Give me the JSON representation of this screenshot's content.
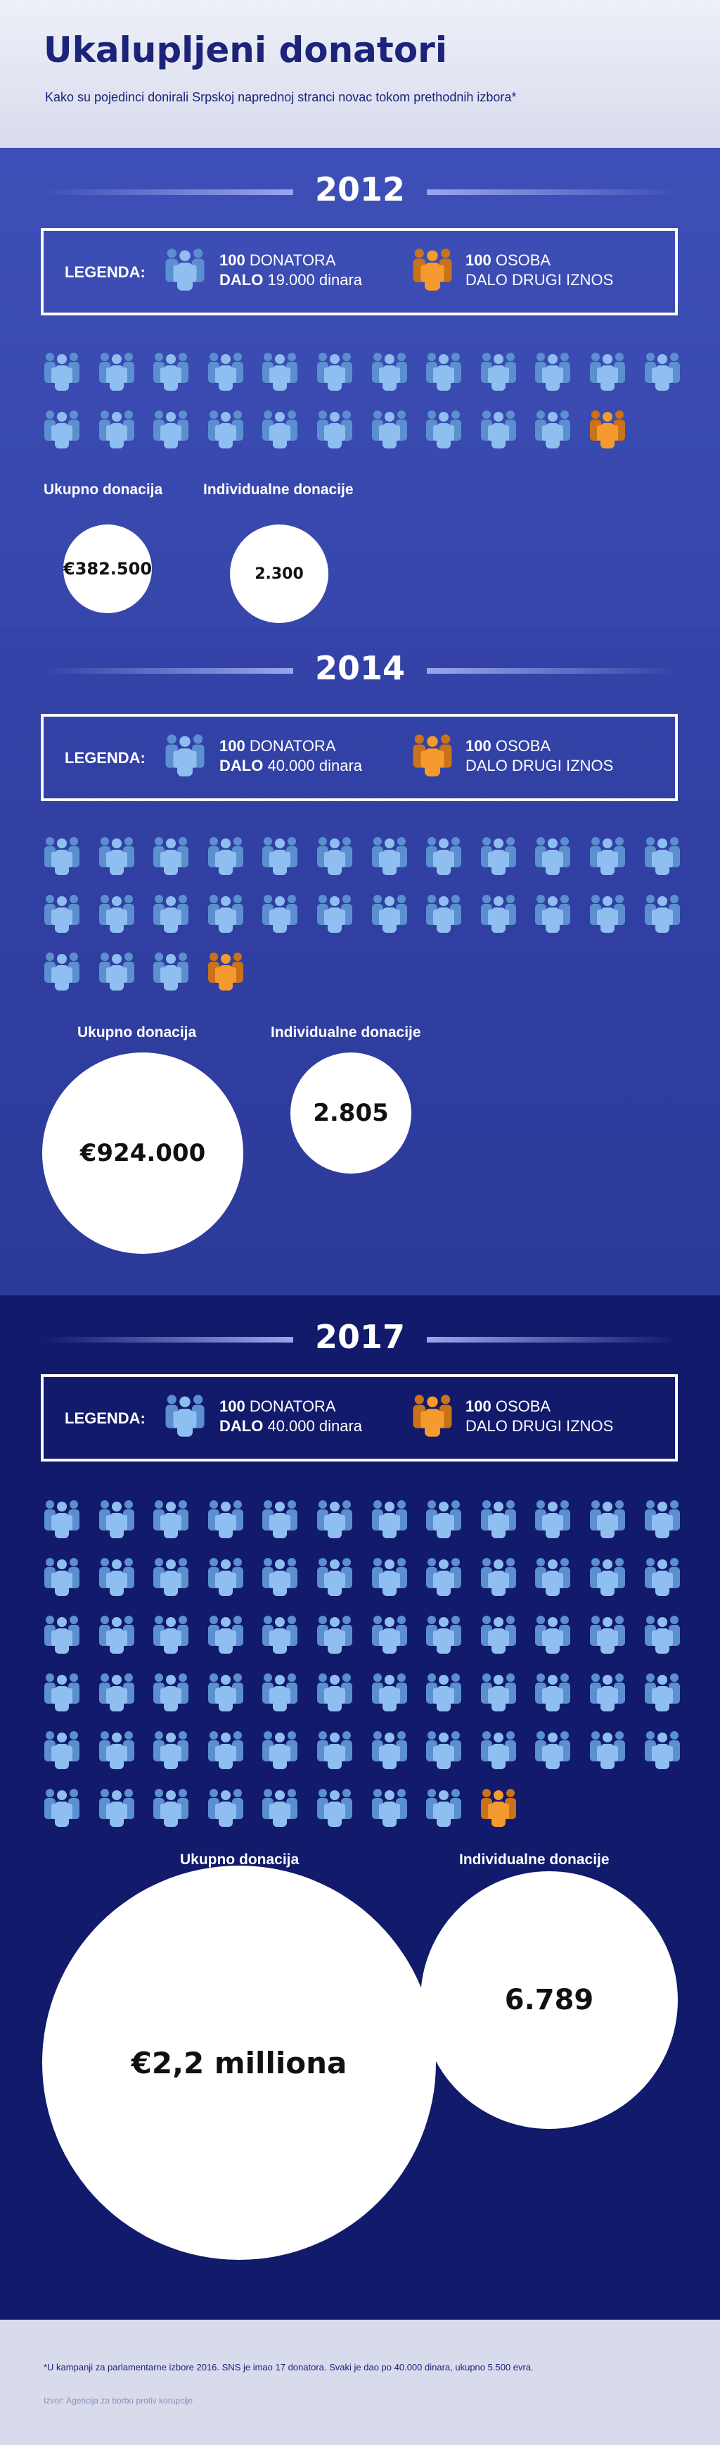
{
  "header": {
    "title": "Ukalupljeni donatori",
    "subtitle": "Kako su pojedinci donirali Srpskoj naprednoj stranci novac tokom prethodnih izbora*"
  },
  "colors": {
    "donor_icon": "#8fbff0",
    "other_icon": "#f59a2e"
  },
  "icons": {
    "donor": "people-group-icon",
    "other": "people-group-orange-icon"
  },
  "sections": [
    {
      "year": "2012",
      "legend": {
        "label": "LEGENDA:",
        "a_count": "100",
        "a_word": "DONATORA",
        "a_line2_bold": "DALO",
        "a_line2_rest": "19.000 dinara",
        "b_count": "100",
        "b_word": "OSOBA",
        "b_line2": "DALO DRUGI IZNOS"
      },
      "donor_groups": 22,
      "other_groups": 1,
      "total_label": "Ukupno donacija",
      "total_value": "€382.500",
      "individual_label": "Individualne donacije",
      "individual_value": "2.300"
    },
    {
      "year": "2014",
      "legend": {
        "label": "LEGENDA:",
        "a_count": "100",
        "a_word": "DONATORA",
        "a_line2_bold": "DALO",
        "a_line2_rest": "40.000 dinara",
        "b_count": "100",
        "b_word": "OSOBA",
        "b_line2": "DALO DRUGI IZNOS"
      },
      "donor_groups": 27,
      "other_groups": 1,
      "total_label": "Ukupno donacija",
      "total_value": "€924.000",
      "individual_label": "Individualne donacije",
      "individual_value": "2.805"
    },
    {
      "year": "2017",
      "legend": {
        "label": "LEGENDA:",
        "a_count": "100",
        "a_word": "DONATORA",
        "a_line2_bold": "DALO",
        "a_line2_rest": "40.000 dinara",
        "b_count": "100",
        "b_word": "OSOBA",
        "b_line2": "DALO DRUGI IZNOS"
      },
      "donor_groups": 68,
      "other_groups": 1,
      "total_label": "Ukupno donacija",
      "total_value": "€2,2 milliona",
      "individual_label": "Individualne donacije",
      "individual_value": "6.789"
    }
  ],
  "footer": {
    "note": "*U kampanji za parlamentarne izbore 2016. SNS je imao 17 donatora. Svaki je dao po 40.000 dinara, ukupno 5.500 evra.",
    "source": "Izvor: Agencija za borbu protiv korupcije"
  }
}
